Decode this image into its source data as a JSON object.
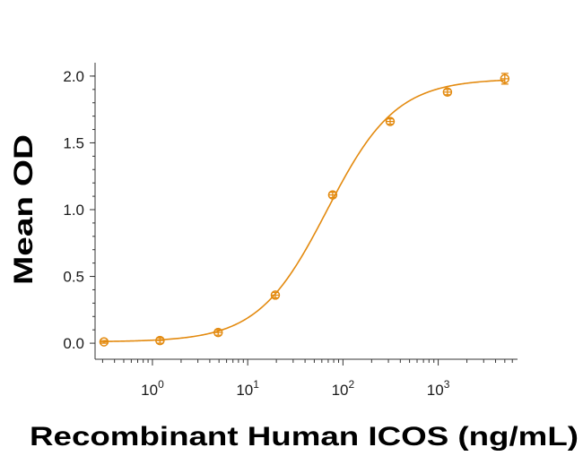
{
  "chart_data": {
    "type": "scatter",
    "title": "",
    "xlabel": "Recombinant Human ICOS (ng/mL)",
    "ylabel": "Mean OD",
    "x_scale": "log",
    "xlim": [
      0.25,
      6800
    ],
    "ylim": [
      -0.1,
      2.1
    ],
    "grid": false,
    "legend": "none",
    "color": "#E38A0F",
    "x_ticks": [
      {
        "value": 1,
        "base": "10",
        "exp": "0"
      },
      {
        "value": 10,
        "base": "10",
        "exp": "1"
      },
      {
        "value": 100,
        "base": "10",
        "exp": "2"
      },
      {
        "value": 1000,
        "base": "10",
        "exp": "3"
      }
    ],
    "y_ticks": [
      "0.0",
      "0.5",
      "1.0",
      "1.5",
      "2.0"
    ],
    "series": [
      {
        "points": [
          {
            "x": 0.31,
            "y": 0.01,
            "err": 0.01
          },
          {
            "x": 1.2,
            "y": 0.02,
            "err": 0.02
          },
          {
            "x": 4.9,
            "y": 0.08,
            "err": 0.02
          },
          {
            "x": 19.5,
            "y": 0.36,
            "err": 0.02
          },
          {
            "x": 78,
            "y": 1.11,
            "err": 0.02
          },
          {
            "x": 313,
            "y": 1.66,
            "err": 0.02
          },
          {
            "x": 1250,
            "y": 1.88,
            "err": 0.02
          },
          {
            "x": 5000,
            "y": 1.98,
            "err": 0.04
          }
        ],
        "fit": {
          "bottom": 0.01,
          "top": 1.98,
          "ec50": 68,
          "hill": 1.2
        }
      }
    ]
  }
}
